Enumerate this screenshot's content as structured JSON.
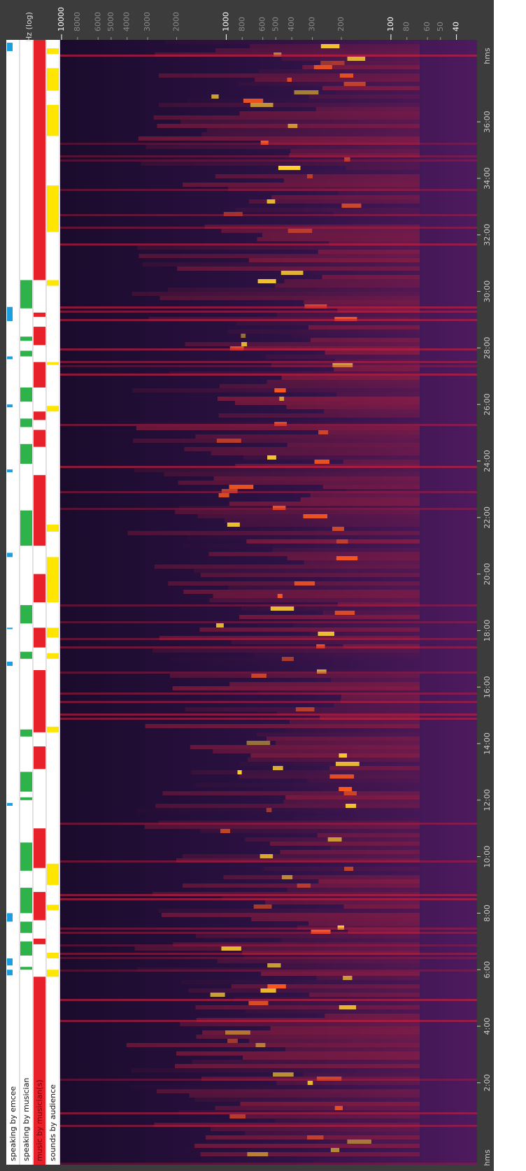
{
  "chart_data": {
    "type": "spectrogram",
    "x_label": "hms",
    "y_label": "Hz (log)",
    "log_y": true,
    "xlim": [
      -0.9,
      38.9
    ],
    "xticks": [
      {
        "value": 2,
        "label": "2:00"
      },
      {
        "value": 4,
        "label": "4:00"
      },
      {
        "value": 6,
        "label": "6:00"
      },
      {
        "value": 8,
        "label": "8:00"
      },
      {
        "value": 10,
        "label": "10:00"
      },
      {
        "value": 12,
        "label": "12:00"
      },
      {
        "value": 14,
        "label": "14:00"
      },
      {
        "value": 16,
        "label": "16:00"
      },
      {
        "value": 18,
        "label": "18:00"
      },
      {
        "value": 20,
        "label": "20:00"
      },
      {
        "value": 22,
        "label": "22:00"
      },
      {
        "value": 24,
        "label": "24:00"
      },
      {
        "value": 26,
        "label": "26:00"
      },
      {
        "value": 28,
        "label": "28:00"
      },
      {
        "value": 30,
        "label": "30:00"
      },
      {
        "value": 32,
        "label": "32:00"
      },
      {
        "value": 34,
        "label": "34:00"
      },
      {
        "value": 36,
        "label": "36:00"
      }
    ],
    "ylim": [
      30,
      10200
    ],
    "yticks": [
      10000,
      8000,
      6000,
      5000,
      4000,
      3000,
      2000,
      1000,
      800,
      600,
      500,
      400,
      300,
      200,
      100,
      80,
      60,
      50,
      40
    ],
    "major_yticks": [
      10000,
      1000,
      100,
      40
    ],
    "tracks": [
      {
        "name": "speaking by emcee",
        "color": "#1a9ee0",
        "segments": [
          [
            5.8,
            6.0
          ],
          [
            6.15,
            6.4
          ],
          [
            7.7,
            8.0
          ],
          [
            11.8,
            11.9
          ],
          [
            16.75,
            16.9
          ],
          [
            18.05,
            18.1
          ],
          [
            20.6,
            20.75
          ],
          [
            23.6,
            23.7
          ],
          [
            25.9,
            26.0
          ],
          [
            27.6,
            27.7
          ],
          [
            28.95,
            29.45
          ],
          [
            38.5,
            38.8
          ]
        ]
      },
      {
        "name": "speaking by musician",
        "color": "#2db34a",
        "segments": [
          [
            6.0,
            6.1
          ],
          [
            6.5,
            7.0
          ],
          [
            7.3,
            7.7
          ],
          [
            8.0,
            8.9
          ],
          [
            9.5,
            10.5
          ],
          [
            12.0,
            12.1
          ],
          [
            12.3,
            13.0
          ],
          [
            14.25,
            14.5
          ],
          [
            17.0,
            17.25
          ],
          [
            18.25,
            18.9
          ],
          [
            21.0,
            22.25
          ],
          [
            23.9,
            24.6
          ],
          [
            25.2,
            25.5
          ],
          [
            26.1,
            26.6
          ],
          [
            27.7,
            27.9
          ],
          [
            28.25,
            28.4
          ],
          [
            29.4,
            30.4
          ]
        ]
      },
      {
        "name": "music by musician(s)",
        "color": "#e8202a",
        "segments": [
          [
            -0.9,
            5.75
          ],
          [
            6.9,
            7.1
          ],
          [
            7.75,
            8.75
          ],
          [
            9.6,
            11.0
          ],
          [
            13.1,
            13.9
          ],
          [
            14.4,
            16.6
          ],
          [
            17.4,
            18.1
          ],
          [
            19.0,
            20.0
          ],
          [
            21.0,
            23.5
          ],
          [
            24.5,
            25.1
          ],
          [
            25.45,
            25.75
          ],
          [
            26.6,
            27.5
          ],
          [
            28.1,
            28.75
          ],
          [
            29.1,
            29.25
          ],
          [
            30.4,
            38.9
          ]
        ]
      },
      {
        "name": "sounds by audience",
        "color": "#ffe600",
        "segments": [
          [
            5.75,
            6.0
          ],
          [
            6.4,
            6.6
          ],
          [
            8.1,
            8.3
          ],
          [
            9.0,
            9.75
          ],
          [
            14.4,
            14.6
          ],
          [
            17.0,
            17.2
          ],
          [
            17.75,
            18.1
          ],
          [
            19.0,
            20.6
          ],
          [
            21.5,
            21.75
          ],
          [
            25.75,
            25.95
          ],
          [
            27.4,
            27.5
          ],
          [
            30.2,
            30.4
          ],
          [
            32.1,
            33.75
          ],
          [
            35.5,
            36.6
          ],
          [
            37.1,
            37.9
          ],
          [
            38.4,
            38.6
          ]
        ]
      }
    ]
  }
}
